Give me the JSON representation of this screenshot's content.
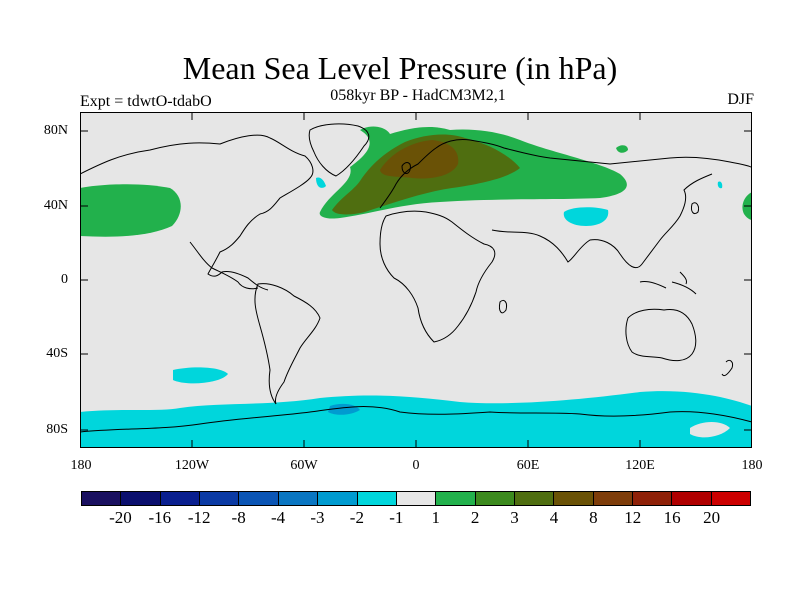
{
  "title": "Mean Sea Level Pressure (in hPa)",
  "subtitle": "058kyr BP - HadCM3M2,1",
  "left_label": "Expt = tdwtO-tdabO",
  "right_label": "DJF",
  "lat_ticks": [
    "80N",
    "40N",
    "0",
    "40S",
    "80S"
  ],
  "lon_ticks": [
    "180",
    "120W",
    "60W",
    "0",
    "60E",
    "120E",
    "180"
  ],
  "colorbar": {
    "colors": [
      "#1a1060",
      "#0b0f6e",
      "#0a1f8f",
      "#0b3aa4",
      "#0b55b5",
      "#0a76c2",
      "#009bd0",
      "#00d6dc",
      "#e6e6e6",
      "#22b14c",
      "#3c8a1e",
      "#4f6e10",
      "#6a5206",
      "#7e3d0a",
      "#8f2108",
      "#b00000",
      "#cc0000"
    ],
    "labels": [
      "-20",
      "-16",
      "-12",
      "-8",
      "-4",
      "-3",
      "-2",
      "-1",
      "1",
      "2",
      "3",
      "4",
      "8",
      "12",
      "16",
      "20"
    ]
  },
  "map_colors": {
    "background": "#e6e6e6",
    "neg1": "#00d6dc",
    "neg2": "#009bd0",
    "pos1": "#22b14c",
    "pos2": "#4f6e10",
    "pos3": "#6a5206"
  }
}
